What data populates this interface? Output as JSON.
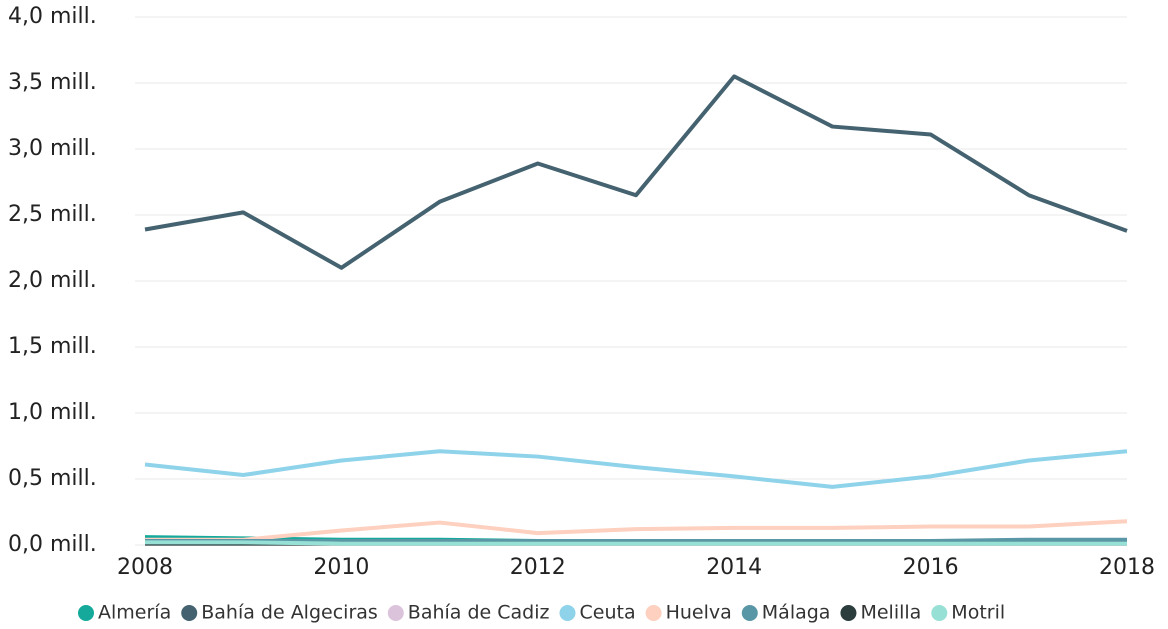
{
  "chart_data": {
    "type": "line",
    "x": [
      2008,
      2009,
      2010,
      2011,
      2012,
      2013,
      2014,
      2015,
      2016,
      2017,
      2018
    ],
    "xlim": [
      2008,
      2018
    ],
    "xticks": [
      2008,
      2010,
      2012,
      2014,
      2016,
      2018
    ],
    "ylim": [
      0,
      4
    ],
    "yticks": [
      {
        "value": 0,
        "label": "0,0 mill."
      },
      {
        "value": 0.5,
        "label": "0,5 mill."
      },
      {
        "value": 1,
        "label": "1,0 mill."
      },
      {
        "value": 1.5,
        "label": "1,5 mill."
      },
      {
        "value": 2,
        "label": "2,0 mill."
      },
      {
        "value": 2.5,
        "label": "2,5 mill."
      },
      {
        "value": 3,
        "label": "3,0 mill."
      },
      {
        "value": 3.5,
        "label": "3,5 mill."
      },
      {
        "value": 4,
        "label": "4,0 mill."
      }
    ],
    "grid": true,
    "legend": "bottom",
    "series": [
      {
        "name": "Almería",
        "color": "#14a99a",
        "values": [
          0.06,
          0.05,
          0.04,
          0.04,
          0.03,
          0.02,
          0.02,
          0.02,
          0.02,
          0.02,
          0.02
        ]
      },
      {
        "name": "Bahía de Algeciras",
        "color": "#44626f",
        "values": [
          2.39,
          2.52,
          2.1,
          2.6,
          2.89,
          2.65,
          3.55,
          3.17,
          3.11,
          2.65,
          2.38
        ]
      },
      {
        "name": "Bahía de Cadiz",
        "color": "#dcc3dc",
        "values": [
          0.01,
          0.01,
          0.01,
          0.01,
          0.01,
          0.01,
          0.01,
          0.01,
          0.01,
          0.01,
          0.01
        ]
      },
      {
        "name": "Ceuta",
        "color": "#8ed3ea",
        "values": [
          0.61,
          0.53,
          0.64,
          0.71,
          0.67,
          0.59,
          0.52,
          0.44,
          0.52,
          0.64,
          0.71
        ]
      },
      {
        "name": "Huelva",
        "color": "#fdd0bf",
        "values": [
          0.04,
          0.04,
          0.11,
          0.17,
          0.09,
          0.12,
          0.13,
          0.13,
          0.14,
          0.14,
          0.18
        ]
      },
      {
        "name": "Málaga",
        "color": "#5a97a6",
        "values": [
          0.03,
          0.03,
          0.03,
          0.03,
          0.03,
          0.03,
          0.03,
          0.03,
          0.03,
          0.04,
          0.04
        ]
      },
      {
        "name": "Melilla",
        "color": "#2b3d3d",
        "values": [
          0.01,
          0.01,
          0.01,
          0.01,
          0.01,
          0.01,
          0.01,
          0.01,
          0.01,
          0.01,
          0.01
        ]
      },
      {
        "name": "Motril",
        "color": "#96e0d5",
        "values": [
          0.02,
          0.02,
          0.01,
          0.01,
          0.01,
          0.01,
          0.01,
          0.01,
          0.01,
          0.01,
          0.01
        ]
      }
    ]
  }
}
